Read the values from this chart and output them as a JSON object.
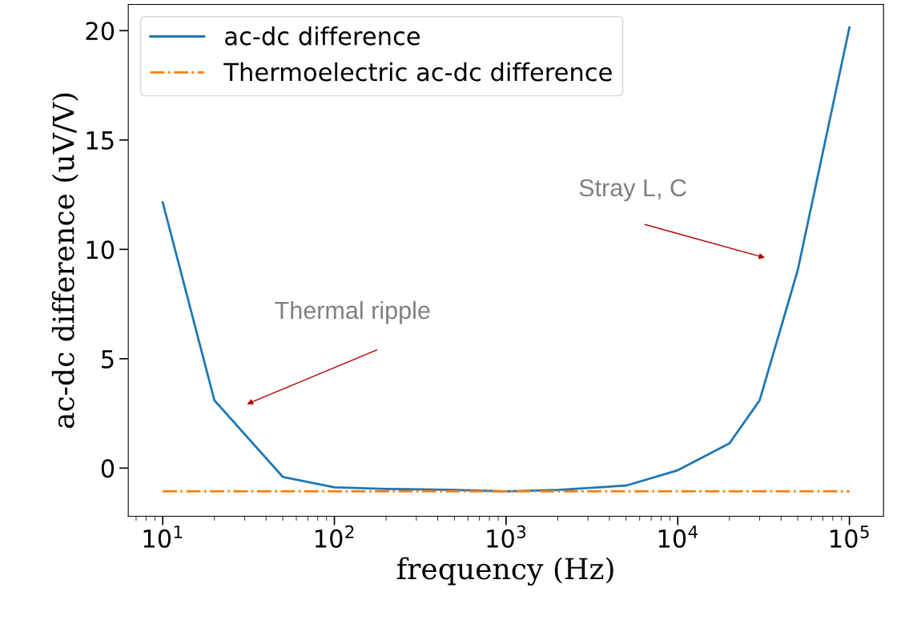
{
  "chart_data": {
    "type": "line",
    "xlabel": "frequency (Hz)",
    "ylabel": "ac-dc difference (uV/V)",
    "log": "x",
    "xlim": [
      6.3,
      158000
    ],
    "xticks": [
      {
        "value": 10,
        "label": "10$^{1}$"
      },
      {
        "value": 100,
        "label": "10$^{2}$"
      },
      {
        "value": 1000,
        "label": "10$^{3}$"
      },
      {
        "value": 10000,
        "label": "10$^{4}$"
      },
      {
        "value": 100000,
        "label": "10$^{5}$"
      }
    ],
    "ylim": [
      -2.2,
      21.2
    ],
    "yticks": [
      0,
      5,
      10,
      15,
      20
    ],
    "x": [
      10,
      20,
      50,
      100,
      200,
      500,
      1000,
      2000,
      5000,
      10000,
      20000,
      30000,
      50000,
      100000
    ],
    "series": [
      {
        "name": "ac-dc difference",
        "color": "#1f77b4",
        "line_style": "solid",
        "values": [
          12.15,
          3.1,
          -0.4,
          -0.88,
          -0.95,
          -1.0,
          -1.06,
          -1.0,
          -0.8,
          -0.1,
          1.13,
          3.1,
          9.05,
          20.15
        ]
      },
      {
        "name": "Thermoelectric ac-dc difference",
        "color": "#ff7f0e",
        "line_style": "dashdot",
        "values": [
          -1.06,
          -1.06,
          -1.06,
          -1.06,
          -1.06,
          -1.06,
          -1.06,
          -1.06,
          -1.06,
          -1.06,
          -1.06,
          -1.06,
          -1.06,
          -1.06
        ]
      }
    ],
    "annotations": [
      "Thermal ripple",
      "Stray L, C"
    ],
    "legend": "upper left",
    "grid": false
  }
}
